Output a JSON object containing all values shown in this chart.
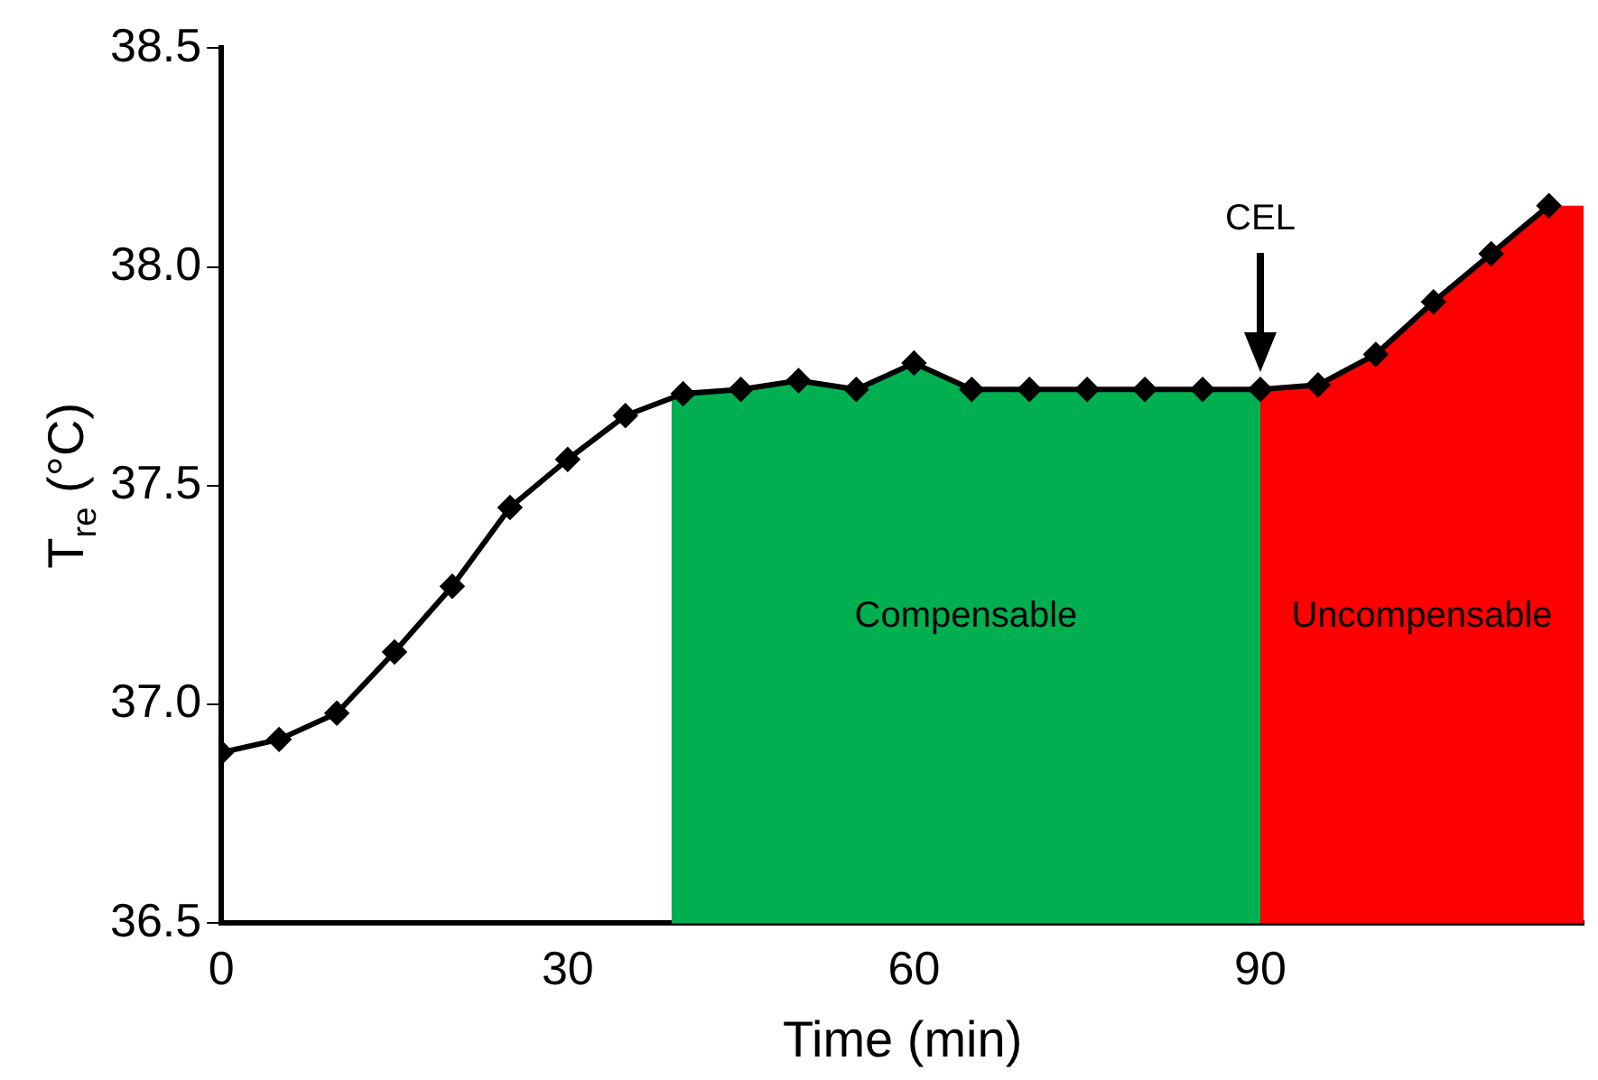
{
  "chart_data": {
    "type": "line",
    "xlabel": "Time (min)",
    "ylabel": "T$_{re}$ (°C)",
    "x": [
      0,
      5,
      10,
      15,
      20,
      25,
      30,
      35,
      40,
      45,
      50,
      55,
      60,
      65,
      70,
      75,
      80,
      85,
      90,
      95,
      100,
      105,
      110,
      115
    ],
    "series": [
      {
        "color": "#000000",
        "values": [
          36.89,
          36.92,
          36.98,
          37.12,
          37.27,
          37.45,
          37.56,
          37.66,
          37.71,
          37.72,
          37.74,
          37.72,
          37.78,
          37.72,
          37.72,
          37.72,
          37.72,
          37.72,
          37.72,
          37.73,
          37.8,
          37.92,
          38.03,
          38.14
        ]
      }
    ],
    "xlim": [
      0,
      118
    ],
    "xticks": [
      0,
      30,
      60,
      90
    ],
    "ylim": [
      36.5,
      38.5
    ],
    "yticks": [
      {
        "value": 36.5,
        "label": "36.5"
      },
      {
        "value": 37,
        "label": "37.0"
      },
      {
        "value": 37.5,
        "label": "37.5"
      },
      {
        "value": 38,
        "label": "38.0"
      },
      {
        "value": 38.5,
        "label": "38.5"
      }
    ],
    "bands": [
      {
        "axis": "x",
        "from": 39,
        "to": 90,
        "label": "Compensable",
        "color": "#00b050"
      },
      {
        "axis": "x",
        "from": 90,
        "to": 118,
        "label": "Uncompensable",
        "color": "#ff0000"
      }
    ],
    "annotations": [
      "CEL"
    ],
    "grid": false,
    "legend": false,
    "marker": "diamond",
    "line_style": "solid"
  }
}
